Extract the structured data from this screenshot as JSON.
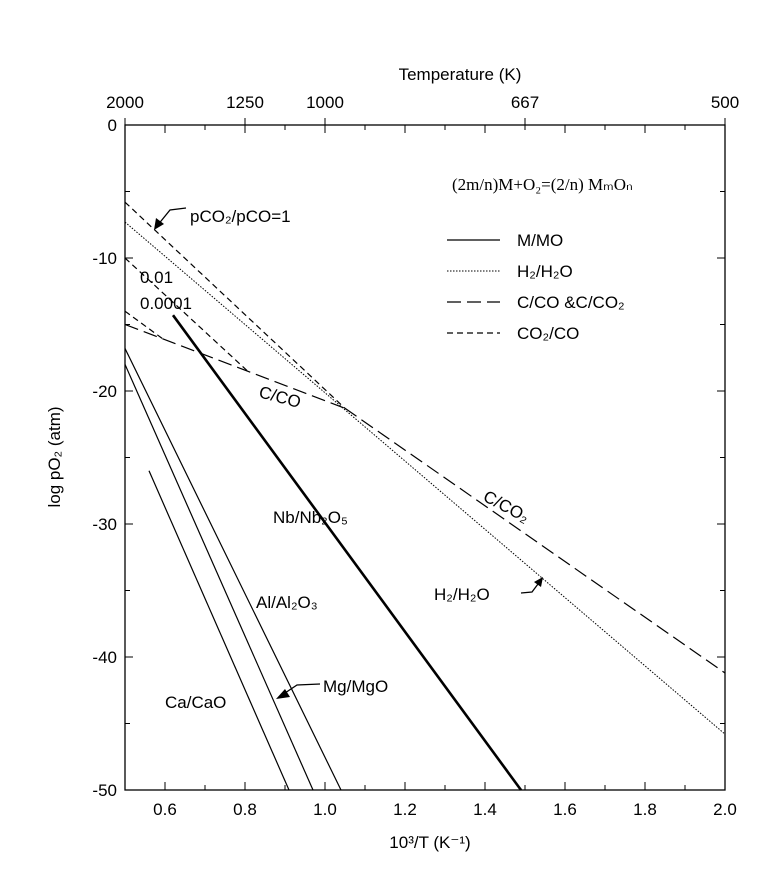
{
  "chart_data": {
    "type": "line",
    "title": "",
    "xlabel": "10³/T (K⁻¹)",
    "ylabel": "log pO₂ (atm)",
    "top_axis_label": "Temperature (K)",
    "xlim": [
      0.5,
      2.0
    ],
    "ylim": [
      -50,
      0
    ],
    "x_ticks": [
      "0.6",
      "0.8",
      "1.0",
      "1.2",
      "1.4",
      "1.6",
      "1.8",
      "2.0"
    ],
    "y_ticks": [
      "0",
      "-10",
      "-20",
      "-30",
      "-40",
      "-50"
    ],
    "top_ticks": [
      {
        "label": "2000",
        "x": 0.5
      },
      {
        "label": "1250",
        "x": 0.8
      },
      {
        "label": "1000",
        "x": 1.0
      },
      {
        "label": "667",
        "x": 1.5
      },
      {
        "label": "500",
        "x": 2.0
      }
    ],
    "grid": false,
    "formula": "(2m/n)M+O₂=(2/n) MₘOₙ",
    "legend": {
      "placement": "top-right",
      "entries": [
        {
          "label": "M/MO",
          "style": "solid"
        },
        {
          "label": "H₂/H₂O",
          "style": "dotted"
        },
        {
          "label": "C/CO &C/CO₂",
          "style": "long-dash"
        },
        {
          "label": "CO₂/CO",
          "style": "short-dash"
        }
      ]
    },
    "series": [
      {
        "name": "Nb/Nb₂O₅",
        "style": "solid-thick",
        "points": [
          [
            0.62,
            -14.3
          ],
          [
            1.49,
            -50
          ]
        ]
      },
      {
        "name": "Al/Al₂O₃",
        "style": "solid",
        "points": [
          [
            0.5,
            -16.8
          ],
          [
            1.04,
            -50
          ]
        ]
      },
      {
        "name": "Mg/MgO",
        "style": "solid",
        "points": [
          [
            0.5,
            -18
          ],
          [
            0.97,
            -50
          ]
        ]
      },
      {
        "name": "Ca/CaO",
        "style": "solid",
        "points": [
          [
            0.56,
            -26
          ],
          [
            0.91,
            -50
          ]
        ]
      },
      {
        "name": "H₂/H₂O",
        "style": "dotted",
        "points": [
          [
            0.5,
            -7.3
          ],
          [
            2.0,
            -45.8
          ]
        ]
      },
      {
        "name": "C/CO",
        "style": "long-dash",
        "points": [
          [
            0.5,
            -15
          ],
          [
            1.05,
            -21.3
          ]
        ]
      },
      {
        "name": "C/CO₂",
        "style": "long-dash",
        "points": [
          [
            1.05,
            -21.3
          ],
          [
            2.0,
            -41.2
          ]
        ]
      },
      {
        "name": "pCO₂/pCO=1",
        "style": "short-dash",
        "points": [
          [
            0.5,
            -5.8
          ],
          [
            1.05,
            -21.3
          ]
        ]
      },
      {
        "name": "0.01",
        "style": "short-dash",
        "points": [
          [
            0.5,
            -10
          ],
          [
            0.81,
            -18.6
          ]
        ]
      },
      {
        "name": "0.0001",
        "style": "short-dash",
        "points": [
          [
            0.5,
            -14
          ],
          [
            0.6,
            -16.2
          ]
        ]
      }
    ]
  }
}
